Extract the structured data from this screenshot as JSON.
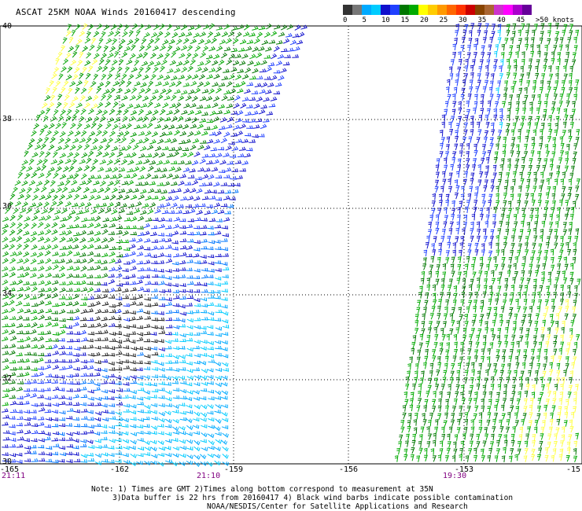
{
  "title": "ASCAT 25KM NOAA Winds 20160417 descending",
  "scale": {
    "colors": [
      "#333333",
      "#777777",
      "#00aaff",
      "#00ccff",
      "#1010cc",
      "#2040ff",
      "#007700",
      "#00aa00",
      "#ffff00",
      "#ffcc00",
      "#ff9900",
      "#ff6600",
      "#ff3300",
      "#cc0000",
      "#884400",
      "#aa6633",
      "#cc33cc",
      "#ff00ff",
      "#aa00cc",
      "#660099"
    ],
    "labels": [
      "0",
      "5",
      "10",
      "15",
      "20",
      "25",
      "30",
      "35",
      "40",
      "45",
      ">50 knots"
    ]
  },
  "map": {
    "lat_labels": [
      "40",
      "38",
      "36",
      "34",
      "32",
      "30"
    ],
    "lon_labels": [
      "-165",
      "-162",
      "-159",
      "-156",
      "-153",
      "-15"
    ],
    "pass_times": [
      "21:11",
      "21:10",
      "19:30"
    ]
  },
  "footer": {
    "line1": "Note: 1) Times are GMT 2)Times along bottom correspond to measurement at 35N",
    "line2": "3)Data buffer is 22 hrs from 20160417 4) Black wind barbs indicate possible contamination",
    "line3": "NOAA/NESDIS/Center for Satellite Applications and Research"
  }
}
